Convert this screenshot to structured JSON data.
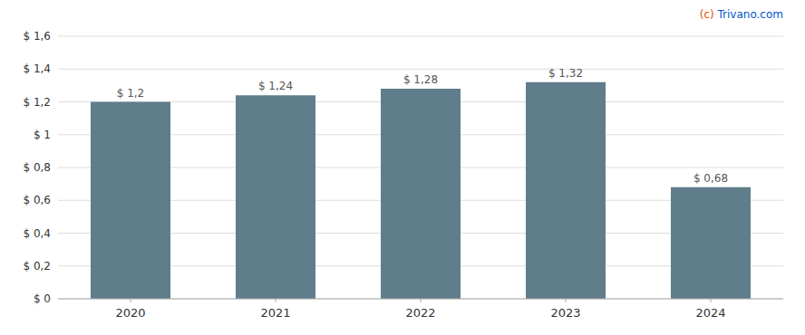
{
  "chart_data": {
    "type": "bar",
    "categories": [
      "2020",
      "2021",
      "2022",
      "2023",
      "2024"
    ],
    "values": [
      1.2,
      1.24,
      1.28,
      1.32,
      0.68
    ],
    "value_labels": [
      "$ 1,2",
      "$ 1,24",
      "$ 1,28",
      "$ 1,32",
      "$ 0,68"
    ],
    "color": "#607d8b",
    "ylim": [
      0,
      1.6
    ],
    "yticks": [
      {
        "value": 0,
        "label": "$ 0"
      },
      {
        "value": 0.2,
        "label": "$ 0,2"
      },
      {
        "value": 0.4,
        "label": "$ 0,4"
      },
      {
        "value": 0.6,
        "label": "$ 0,6"
      },
      {
        "value": 0.8,
        "label": "$ 0,8"
      },
      {
        "value": 1.0,
        "label": "$ 1"
      },
      {
        "value": 1.2,
        "label": "$ 1,2"
      },
      {
        "value": 1.4,
        "label": "$ 1,4"
      },
      {
        "value": 1.6,
        "label": "$ 1,6"
      }
    ],
    "grid": true,
    "data_labels": true,
    "annotations": [
      {
        "text": "(c) ",
        "color": "#e05000"
      },
      {
        "text": "Trivano.com",
        "color": "#0055cc"
      }
    ]
  }
}
